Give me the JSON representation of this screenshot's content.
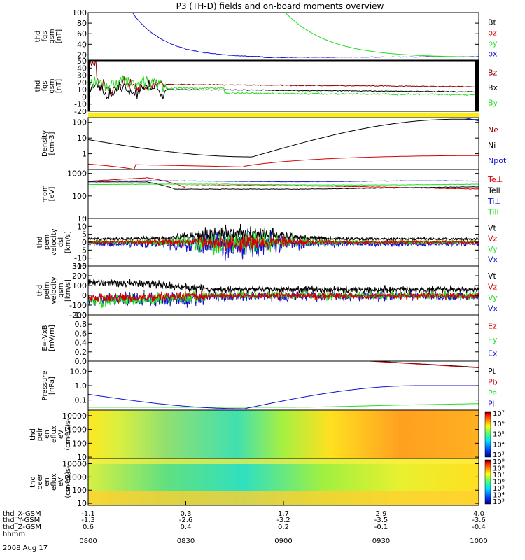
{
  "title": "P3 (TH-D) fields and on-board moments overview",
  "colors": {
    "black": "#000000",
    "red": "#d40000",
    "darkred": "#8b0000",
    "green": "#22dd22",
    "blue": "#1010d0",
    "yellow": "#ffee00"
  },
  "chart_data": [
    {
      "type": "line",
      "id": "fgs-mag",
      "ylabel_lines": [
        "thd",
        "fgs",
        "gsm",
        "[nT]"
      ],
      "yscale": "linear",
      "ylim": [
        10,
        100
      ],
      "yticks": [
        "20",
        "40",
        "60",
        "80",
        "100"
      ],
      "legend": [
        {
          "text": "Bt",
          "color": "#000000"
        },
        {
          "text": "bz",
          "color": "#d40000"
        },
        {
          "text": "by",
          "color": "#22dd22"
        },
        {
          "text": "bx",
          "color": "#1010d0"
        }
      ]
    },
    {
      "type": "line",
      "id": "fgs-comp",
      "ylabel_lines": [
        "thd",
        "fgs",
        "gsm",
        "[nT]"
      ],
      "yscale": "linear",
      "ylim": [
        -20,
        50
      ],
      "yticks": [
        "-20",
        "-10",
        "0",
        "10",
        "20",
        "30",
        "40",
        "50"
      ],
      "legend": [
        {
          "text": "Bz",
          "color": "#8b0000"
        },
        {
          "text": "Bx",
          "color": "#000000"
        },
        {
          "text": "By",
          "color": "#22dd22"
        }
      ]
    },
    {
      "type": "line",
      "id": "density",
      "ylabel_lines": [
        "Density",
        "[cm-3]"
      ],
      "yscale": "log",
      "ylim": [
        0.1,
        200
      ],
      "yticks": [
        "1",
        "10",
        "100"
      ],
      "legend": [
        {
          "text": "Ne",
          "color": "#8b0000"
        },
        {
          "text": "Ni",
          "color": "#000000"
        },
        {
          "text": "Npot",
          "color": "#1010d0"
        }
      ]
    },
    {
      "type": "line",
      "id": "temperature",
      "ylabel_lines": [
        "mom",
        "[eV]"
      ],
      "yscale": "log",
      "ylim": [
        10,
        1500
      ],
      "yticks": [
        "10",
        "100",
        "1000"
      ],
      "legend": [
        {
          "text": "Te⊥",
          "color": "#d40000"
        },
        {
          "text": "Tell",
          "color": "#000000"
        },
        {
          "text": "Ti⊥",
          "color": "#1010d0"
        },
        {
          "text": "Till",
          "color": "#22dd22"
        }
      ]
    },
    {
      "type": "line",
      "id": "perm-velocity",
      "ylabel_lines": [
        "thd",
        "pem",
        "velocity",
        "dsl",
        "[km/s]"
      ],
      "yscale": "linear",
      "ylim": [
        -15,
        15
      ],
      "yticks": [
        "-15",
        "-10",
        "-5",
        "0",
        "5",
        "10",
        "15"
      ],
      "legend": [
        {
          "text": "Vt",
          "color": "#000000"
        },
        {
          "text": "Vz",
          "color": "#d40000"
        },
        {
          "text": "Vy",
          "color": "#22dd22"
        },
        {
          "text": "Vx",
          "color": "#1010d0"
        }
      ]
    },
    {
      "type": "line",
      "id": "peim-velocity",
      "ylabel_lines": [
        "thd",
        "peim",
        "velocity",
        "gsm",
        "[km/s]"
      ],
      "yscale": "linear",
      "ylim": [
        -200,
        300
      ],
      "yticks": [
        "-200",
        "-100",
        "0",
        "100",
        "200",
        "300"
      ],
      "legend": [
        {
          "text": "Vt",
          "color": "#000000"
        },
        {
          "text": "Vz",
          "color": "#d40000"
        },
        {
          "text": "Vy",
          "color": "#22dd22"
        },
        {
          "text": "Vx",
          "color": "#1010d0"
        }
      ]
    },
    {
      "type": "line",
      "id": "efield",
      "ylabel_lines": [
        "E=-VxB",
        "[mV/m]"
      ],
      "yscale": "linear",
      "ylim": [
        0,
        1
      ],
      "yticks": [
        "0.0",
        "0.2",
        "0.4",
        "0.6",
        "0.8",
        "1.0"
      ],
      "legend": [
        {
          "text": "Ez",
          "color": "#d40000"
        },
        {
          "text": "Ey",
          "color": "#22dd22"
        },
        {
          "text": "Ex",
          "color": "#1010d0"
        }
      ]
    },
    {
      "type": "line",
      "id": "pressure",
      "ylabel_lines": [
        "Pressure",
        "[nPa]"
      ],
      "yscale": "log",
      "ylim": [
        0.02,
        50
      ],
      "yticks": [
        "0.1",
        "1.0",
        "10.0"
      ],
      "legend": [
        {
          "text": "Pt",
          "color": "#000000"
        },
        {
          "text": "Pb",
          "color": "#d40000"
        },
        {
          "text": "Pe",
          "color": "#22dd22"
        },
        {
          "text": "Pi",
          "color": "#1010d0"
        }
      ]
    },
    {
      "type": "heatmap",
      "id": "peir",
      "ylabel_lines": [
        "thd",
        "peir",
        "en",
        "eflux",
        "eV",
        "(cm^2-s-",
        "sr-eV)"
      ],
      "yscale": "log",
      "ylim": [
        8,
        25000
      ],
      "yticks": [
        "10",
        "100",
        "1000",
        "10000"
      ],
      "colorbar_ticks": [
        "10³",
        "10⁴",
        "10⁵",
        "10⁶",
        "10⁷"
      ]
    },
    {
      "type": "heatmap",
      "id": "peer",
      "ylabel_lines": [
        "thd",
        "peer",
        "en",
        "eflux",
        "eV",
        "(cm^2-s-",
        "sr-eV)"
      ],
      "yscale": "log",
      "ylim": [
        7,
        25000
      ],
      "yticks": [
        "10",
        "100",
        "1000",
        "10000"
      ],
      "colorbar_ticks": [
        "10³",
        "10⁴",
        "10⁵",
        "10⁶",
        "10⁷",
        "10⁸",
        "10⁹"
      ]
    }
  ],
  "time_axis": {
    "labels": [
      "0800",
      "0830",
      "0900",
      "0930",
      "1000"
    ],
    "rows": [
      {
        "name": "thd_X-GSM",
        "values": [
          "-1.1",
          "0.3",
          "1.7",
          "2.9",
          "4.0"
        ]
      },
      {
        "name": "thd_Y-GSM",
        "values": [
          "-1.3",
          "-2.6",
          "-3.2",
          "-3.5",
          "-3.6"
        ]
      },
      {
        "name": "thd_Z-GSM",
        "values": [
          "0.6",
          "0.4",
          "0.2",
          "-0.1",
          "-0.4"
        ]
      },
      {
        "name": "hhmm",
        "values": []
      }
    ],
    "date": "2008 Aug 17"
  }
}
